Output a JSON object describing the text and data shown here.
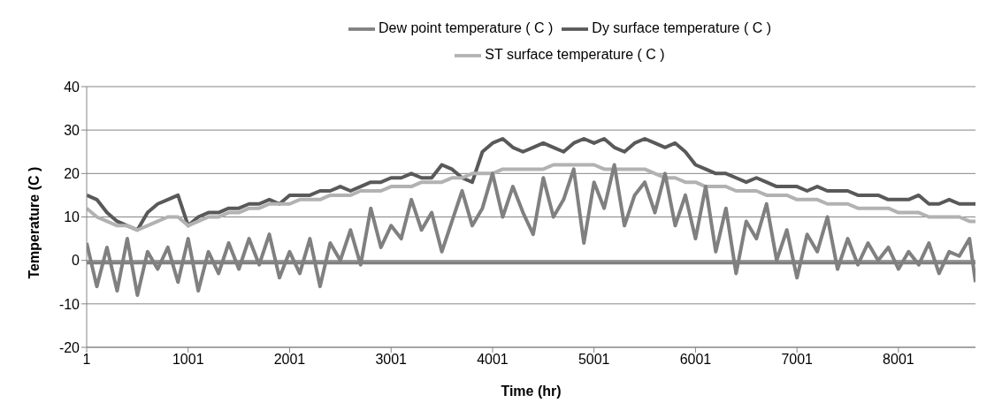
{
  "chart_data": {
    "type": "line",
    "xlabel": "Time (hr)",
    "ylabel": "Temperature (C )",
    "x": [
      1,
      101,
      201,
      301,
      401,
      501,
      601,
      701,
      801,
      901,
      1001,
      1101,
      1201,
      1301,
      1401,
      1501,
      1601,
      1701,
      1801,
      1901,
      2001,
      2101,
      2201,
      2301,
      2401,
      2501,
      2601,
      2701,
      2801,
      2901,
      3001,
      3101,
      3201,
      3301,
      3401,
      3501,
      3601,
      3701,
      3801,
      3901,
      4001,
      4101,
      4201,
      4301,
      4401,
      4501,
      4601,
      4701,
      4801,
      4901,
      5001,
      5101,
      5201,
      5301,
      5401,
      5501,
      5601,
      5701,
      5801,
      5901,
      6001,
      6101,
      6201,
      6301,
      6401,
      6501,
      6601,
      6701,
      6801,
      6901,
      7001,
      7101,
      7201,
      7301,
      7401,
      7501,
      7601,
      7701,
      7801,
      7901,
      8001,
      8101,
      8201,
      8301,
      8401,
      8501,
      8601,
      8701,
      8760
    ],
    "series": [
      {
        "name": "Dy  surface temperature ( C )",
        "color": "#595959",
        "values": [
          15,
          14,
          11,
          9,
          8,
          7,
          11,
          13,
          14,
          15,
          8,
          10,
          11,
          11,
          12,
          12,
          13,
          13,
          14,
          13,
          15,
          15,
          15,
          16,
          16,
          17,
          16,
          17,
          18,
          18,
          19,
          19,
          20,
          19,
          19,
          22,
          21,
          19,
          18,
          25,
          27,
          28,
          26,
          25,
          26,
          27,
          26,
          25,
          27,
          28,
          27,
          28,
          26,
          25,
          27,
          28,
          27,
          26,
          27,
          25,
          22,
          21,
          20,
          20,
          19,
          18,
          19,
          18,
          17,
          17,
          17,
          16,
          17,
          16,
          16,
          16,
          15,
          15,
          15,
          14,
          14,
          14,
          15,
          13,
          13,
          14,
          13,
          13,
          13
        ]
      },
      {
        "name": "ST surface temperature ( C )",
        "color": "#b2b2b2",
        "values": [
          12,
          10,
          9,
          8,
          8,
          7,
          8,
          9,
          10,
          10,
          8,
          9,
          10,
          10,
          11,
          11,
          12,
          12,
          13,
          13,
          13,
          14,
          14,
          14,
          15,
          15,
          15,
          16,
          16,
          16,
          17,
          17,
          17,
          18,
          18,
          18,
          19,
          19,
          20,
          20,
          20,
          21,
          21,
          21,
          21,
          21,
          22,
          22,
          22,
          22,
          22,
          21,
          21,
          21,
          21,
          21,
          20,
          19,
          19,
          18,
          18,
          17,
          17,
          17,
          16,
          16,
          16,
          15,
          15,
          15,
          14,
          14,
          14,
          13,
          13,
          13,
          12,
          12,
          12,
          12,
          11,
          11,
          11,
          10,
          10,
          10,
          10,
          9,
          9
        ]
      },
      {
        "name": "Dew point temperature ( C )",
        "color": "#808080",
        "values": [
          4,
          -6,
          3,
          -7,
          5,
          -8,
          2,
          -2,
          3,
          -5,
          5,
          -7,
          2,
          -3,
          4,
          -2,
          5,
          -1,
          6,
          -4,
          2,
          -3,
          5,
          -6,
          4,
          0,
          7,
          -1,
          12,
          3,
          8,
          5,
          14,
          7,
          11,
          2,
          9,
          16,
          8,
          12,
          20,
          10,
          17,
          11,
          6,
          19,
          10,
          14,
          21,
          4,
          18,
          12,
          22,
          8,
          15,
          18,
          11,
          20,
          8,
          15,
          5,
          17,
          2,
          12,
          -3,
          9,
          5,
          13,
          0,
          7,
          -4,
          6,
          2,
          10,
          -2,
          5,
          -1,
          4,
          0,
          3,
          -2,
          2,
          -1,
          4,
          -3,
          2,
          1,
          5,
          -5
        ]
      }
    ],
    "ref_lines": [
      {
        "axis": "y",
        "value": -0.5,
        "color": "#808080"
      }
    ],
    "xlim": [
      1,
      8760
    ],
    "xticks": [
      1,
      1001,
      2001,
      3001,
      4001,
      5001,
      6001,
      7001,
      8001
    ],
    "ylim": [
      -20,
      40
    ],
    "yticks": [
      -20,
      -10,
      0,
      10,
      20,
      30,
      40
    ],
    "grid": "y",
    "legend": "top",
    "marker": "none",
    "line_style": "solid"
  }
}
